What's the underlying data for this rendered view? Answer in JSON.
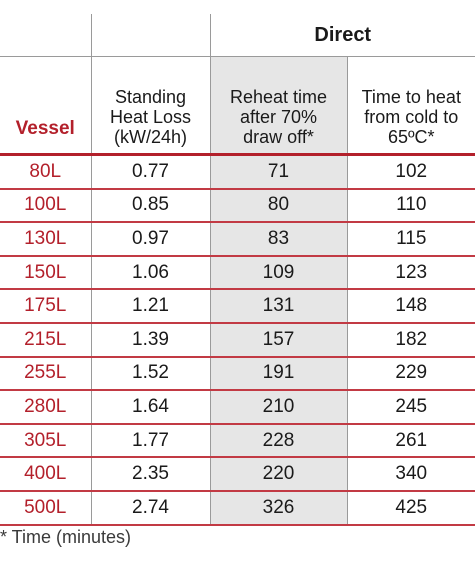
{
  "table": {
    "group_header": "Direct",
    "headers": {
      "vessel": "Vessel",
      "heat_loss": [
        "Standing",
        "Heat Loss",
        "(kW/24h)"
      ],
      "reheat": [
        "Reheat time",
        "after 70%",
        "draw off*"
      ],
      "time_to_heat": [
        "Time to heat",
        "from cold to",
        "65ºC*"
      ]
    },
    "rows": [
      {
        "vessel": "80L",
        "heat_loss": "0.77",
        "reheat": "71",
        "time_to_heat": "102"
      },
      {
        "vessel": "100L",
        "heat_loss": "0.85",
        "reheat": "80",
        "time_to_heat": "110"
      },
      {
        "vessel": "130L",
        "heat_loss": "0.97",
        "reheat": "83",
        "time_to_heat": "115"
      },
      {
        "vessel": "150L",
        "heat_loss": "1.06",
        "reheat": "109",
        "time_to_heat": "123"
      },
      {
        "vessel": "175L",
        "heat_loss": "1.21",
        "reheat": "131",
        "time_to_heat": "148"
      },
      {
        "vessel": "215L",
        "heat_loss": "1.39",
        "reheat": "157",
        "time_to_heat": "182"
      },
      {
        "vessel": "255L",
        "heat_loss": "1.52",
        "reheat": "191",
        "time_to_heat": "229"
      },
      {
        "vessel": "280L",
        "heat_loss": "1.64",
        "reheat": "210",
        "time_to_heat": "245"
      },
      {
        "vessel": "305L",
        "heat_loss": "1.77",
        "reheat": "228",
        "time_to_heat": "261"
      },
      {
        "vessel": "400L",
        "heat_loss": "2.35",
        "reheat": "220",
        "time_to_heat": "340"
      },
      {
        "vessel": "500L",
        "heat_loss": "2.74",
        "reheat": "326",
        "time_to_heat": "425"
      }
    ]
  },
  "footnote": "* Time (minutes)",
  "colors": {
    "accent": "#b3202b",
    "shaded_column": "#e6e6e6"
  }
}
